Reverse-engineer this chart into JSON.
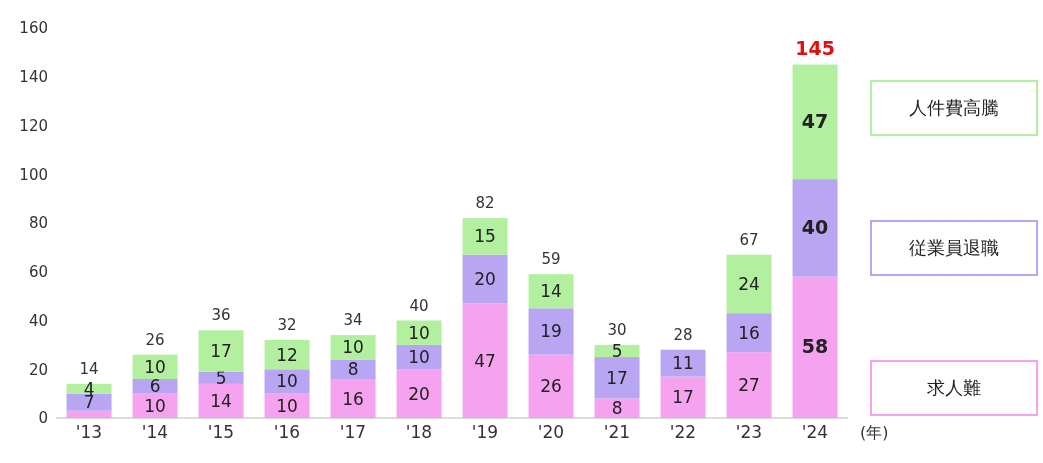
{
  "chart_data": {
    "type": "bar",
    "stacked": true,
    "categories": [
      "'13",
      "'14",
      "'15",
      "'16",
      "'17",
      "'18",
      "'19",
      "'20",
      "'21",
      "'22",
      "'23",
      "'24"
    ],
    "xlabel": "(年)",
    "series": [
      {
        "name": "求人難",
        "color": "#f5a3ee",
        "values": [
          3,
          10,
          14,
          10,
          16,
          20,
          47,
          26,
          8,
          17,
          27,
          58
        ],
        "value_labels": [
          null,
          "10",
          "14",
          "10",
          "16",
          "20",
          "47",
          "26",
          "8",
          "17",
          "27",
          "58"
        ]
      },
      {
        "name": "従業員退職",
        "color": "#b8a6f2",
        "values": [
          7,
          6,
          5,
          10,
          8,
          10,
          20,
          19,
          17,
          11,
          16,
          40
        ],
        "value_labels": [
          "7",
          "6",
          "5",
          "10",
          "8",
          "10",
          "20",
          "19",
          "17",
          "11",
          "16",
          "40"
        ]
      },
      {
        "name": "人件費高騰",
        "color": "#b2f0a0",
        "values": [
          4,
          10,
          17,
          12,
          10,
          10,
          15,
          14,
          5,
          0,
          24,
          47
        ],
        "value_labels": [
          "4",
          "10",
          "17",
          "12",
          "10",
          "10",
          "15",
          "14",
          "5",
          null,
          "24",
          "47"
        ]
      }
    ],
    "totals": [
      "14",
      "26",
      "36",
      "32",
      "34",
      "40",
      "82",
      "59",
      "30",
      "28",
      "67",
      "145"
    ],
    "ylim": [
      0,
      160
    ],
    "yticks": [
      0,
      20,
      40,
      60,
      80,
      100,
      120,
      140,
      160
    ],
    "legend": "right"
  }
}
